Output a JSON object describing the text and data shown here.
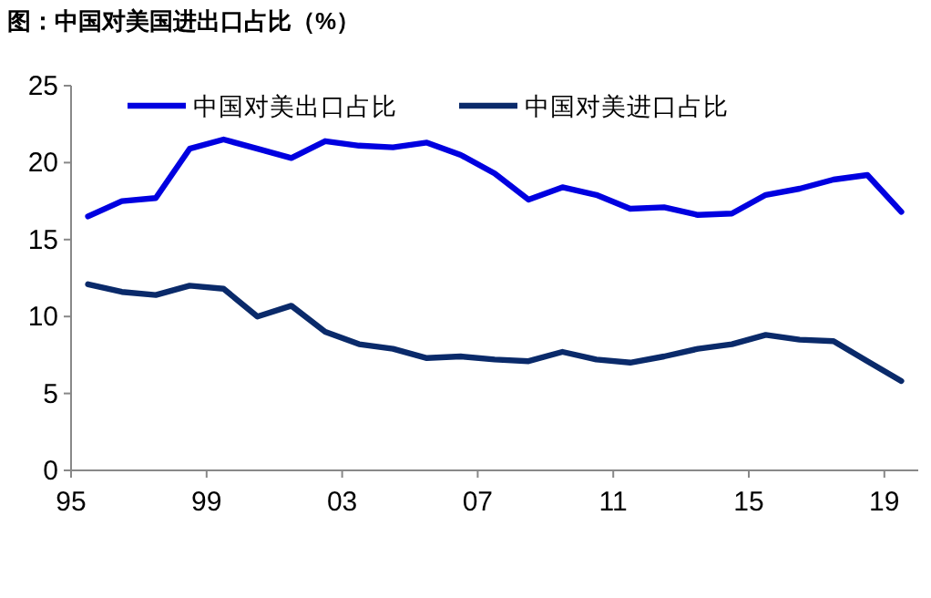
{
  "chart_data": {
    "type": "line",
    "title": "图：中国对美国进出口占比（%）",
    "x": [
      1995.5,
      1996.5,
      1997.5,
      1998.5,
      1999.5,
      2000.5,
      2001.5,
      2002.5,
      2003.5,
      2004.5,
      2005.5,
      2006.5,
      2007.5,
      2008.5,
      2009.5,
      2010.5,
      2011.5,
      2012.5,
      2013.5,
      2014.5,
      2015.5,
      2016.5,
      2017.5,
      2018.5,
      2019.5
    ],
    "series": [
      {
        "name": "中国对美出口占比",
        "color": "#0000e0",
        "values": [
          16.5,
          17.5,
          17.7,
          20.9,
          21.5,
          20.9,
          20.3,
          21.4,
          21.1,
          21.0,
          21.3,
          20.5,
          19.3,
          17.6,
          18.4,
          17.9,
          17.0,
          17.1,
          16.6,
          16.7,
          17.9,
          18.3,
          18.9,
          19.2,
          16.8
        ]
      },
      {
        "name": "中国对美进口占比",
        "color": "#0a2a6a",
        "values": [
          12.1,
          11.6,
          11.4,
          12.0,
          11.8,
          10.0,
          10.7,
          9.0,
          8.2,
          7.9,
          7.3,
          7.4,
          7.2,
          7.1,
          7.7,
          7.2,
          7.0,
          7.4,
          7.9,
          8.2,
          8.8,
          8.5,
          8.4,
          7.1,
          5.8
        ]
      }
    ],
    "xlim": [
      1995,
      2020
    ],
    "xticks": [
      {
        "value": 1995,
        "label": "95"
      },
      {
        "value": 1999,
        "label": "99"
      },
      {
        "value": 2003,
        "label": "03"
      },
      {
        "value": 2007,
        "label": "07"
      },
      {
        "value": 2011,
        "label": "11"
      },
      {
        "value": 2015,
        "label": "15"
      },
      {
        "value": 2019,
        "label": "19"
      }
    ],
    "ylim": [
      0,
      25
    ],
    "yticks": [
      0,
      5,
      10,
      15,
      20,
      25
    ],
    "legend": "top",
    "grid": false,
    "marker": "none",
    "line_style": "solid"
  }
}
